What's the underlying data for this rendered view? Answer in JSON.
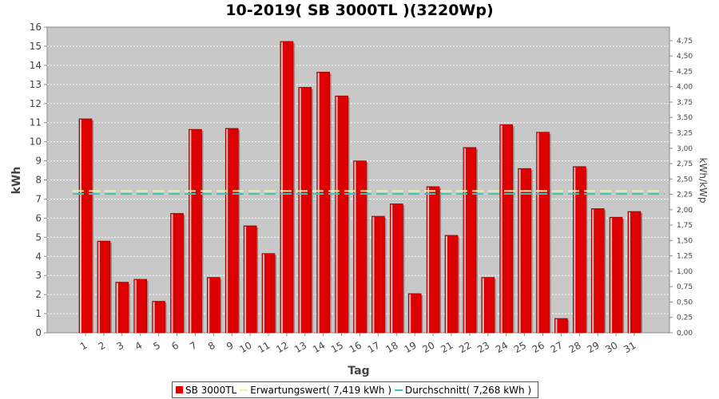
{
  "chart_data": {
    "type": "bar",
    "title": "10-2019( SB 3000TL )(3220Wp)",
    "xlabel": "Tag",
    "ylabel": "kWh",
    "ylabel_right": "kWh/kWp",
    "ylim": [
      0,
      16
    ],
    "ylim_right": [
      0,
      4.969
    ],
    "y_ticks": [
      "0",
      "1",
      "2",
      "3",
      "4",
      "5",
      "6",
      "7",
      "8",
      "9",
      "10",
      "11",
      "12",
      "13",
      "14",
      "15",
      "16"
    ],
    "y_ticks_right": [
      "0,00",
      "0,25",
      "0,50",
      "0,75",
      "1,00",
      "1,25",
      "1,50",
      "1,75",
      "2,00",
      "2,25",
      "2,50",
      "2,75",
      "3,00",
      "3,25",
      "3,50",
      "3,75",
      "4,00",
      "4,25",
      "4,50",
      "4,75"
    ],
    "categories": [
      "1",
      "2",
      "3",
      "4",
      "5",
      "6",
      "7",
      "8",
      "9",
      "10",
      "11",
      "12",
      "13",
      "14",
      "15",
      "16",
      "17",
      "18",
      "19",
      "20",
      "21",
      "22",
      "23",
      "24",
      "25",
      "26",
      "27",
      "28",
      "29",
      "30",
      "31"
    ],
    "series": [
      {
        "name": "SB 3000TL",
        "color": "#dd0000",
        "values": [
          11.2,
          4.8,
          2.65,
          2.8,
          1.65,
          6.25,
          10.65,
          2.9,
          10.7,
          5.6,
          4.15,
          15.25,
          12.85,
          13.65,
          12.4,
          9.0,
          6.1,
          6.75,
          2.05,
          7.65,
          5.1,
          9.7,
          2.9,
          10.9,
          8.6,
          10.5,
          0.75,
          8.7,
          6.5,
          6.05,
          6.35
        ]
      }
    ],
    "reference_lines": [
      {
        "name": "Erwartungswert( 7,419 kWh )",
        "value": 7.419,
        "color": "#f0f0a0"
      },
      {
        "name": "Durchschnitt( 7,268 kWh )",
        "value": 7.268,
        "color": "#40c0c0"
      }
    ],
    "grid": true,
    "legend_position": "bottom"
  }
}
